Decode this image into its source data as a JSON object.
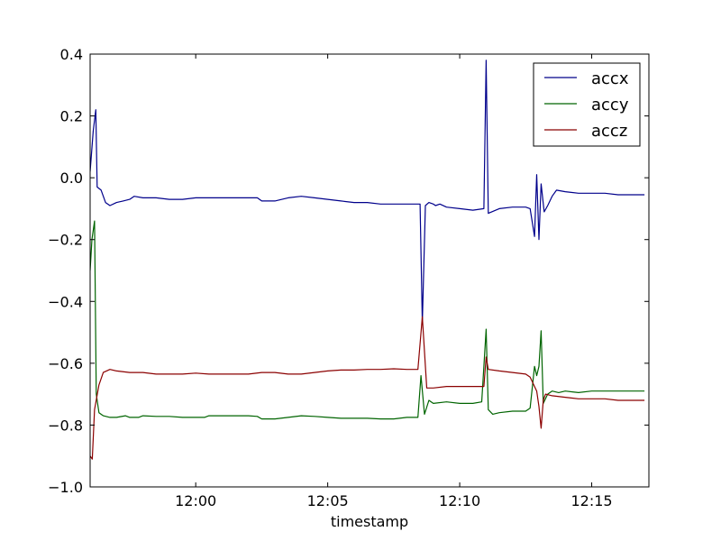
{
  "chart_data": {
    "type": "line",
    "xlabel": "timestamp",
    "ylabel": "",
    "x_unit": "time (hh:mm)",
    "xlim": [
      "11:56:00",
      "12:17:10"
    ],
    "ylim": [
      -1.0,
      0.4
    ],
    "x_ticks": [
      "12:00",
      "12:05",
      "12:10",
      "12:15"
    ],
    "y_ticks": [
      -1.0,
      -0.8,
      -0.6,
      -0.4,
      -0.2,
      0.0,
      0.2,
      0.4
    ],
    "y_tick_labels": [
      "−1.0",
      "−0.8",
      "−0.6",
      "−0.4",
      "−0.2",
      "0.0",
      "0.2",
      "0.4"
    ],
    "grid": false,
    "legend": {
      "placement": "top-right"
    },
    "series": [
      {
        "name": "accx",
        "color": "#00008b",
        "points": [
          [
            "11:56:00",
            0.02
          ],
          [
            "11:56:07",
            0.15
          ],
          [
            "11:56:13",
            0.22
          ],
          [
            "11:56:16",
            -0.03
          ],
          [
            "11:56:25",
            -0.04
          ],
          [
            "11:56:35",
            -0.08
          ],
          [
            "11:56:45",
            -0.09
          ],
          [
            "11:57:00",
            -0.08
          ],
          [
            "11:57:15",
            -0.075
          ],
          [
            "11:57:30",
            -0.07
          ],
          [
            "11:57:40",
            -0.06
          ],
          [
            "11:58:00",
            -0.065
          ],
          [
            "11:58:30",
            -0.065
          ],
          [
            "11:59:00",
            -0.07
          ],
          [
            "11:59:30",
            -0.07
          ],
          [
            "12:00:00",
            -0.065
          ],
          [
            "12:00:30",
            -0.065
          ],
          [
            "12:01:00",
            -0.065
          ],
          [
            "12:01:30",
            -0.065
          ],
          [
            "12:02:00",
            -0.065
          ],
          [
            "12:02:20",
            -0.065
          ],
          [
            "12:02:30",
            -0.075
          ],
          [
            "12:03:00",
            -0.075
          ],
          [
            "12:03:30",
            -0.065
          ],
          [
            "12:04:00",
            -0.06
          ],
          [
            "12:04:30",
            -0.065
          ],
          [
            "12:05:00",
            -0.07
          ],
          [
            "12:05:30",
            -0.075
          ],
          [
            "12:06:00",
            -0.08
          ],
          [
            "12:06:30",
            -0.08
          ],
          [
            "12:07:00",
            -0.085
          ],
          [
            "12:07:30",
            -0.085
          ],
          [
            "12:08:00",
            -0.085
          ],
          [
            "12:08:20",
            -0.085
          ],
          [
            "12:08:30",
            -0.085
          ],
          [
            "12:08:35",
            -0.47
          ],
          [
            "12:08:42",
            -0.09
          ],
          [
            "12:08:50",
            -0.08
          ],
          [
            "12:09:00",
            -0.085
          ],
          [
            "12:09:05",
            -0.09
          ],
          [
            "12:09:15",
            -0.085
          ],
          [
            "12:09:30",
            -0.095
          ],
          [
            "12:10:00",
            -0.1
          ],
          [
            "12:10:30",
            -0.105
          ],
          [
            "12:10:55",
            -0.1
          ],
          [
            "12:11:00",
            0.38
          ],
          [
            "12:11:05",
            -0.115
          ],
          [
            "12:11:30",
            -0.1
          ],
          [
            "12:12:00",
            -0.095
          ],
          [
            "12:12:20",
            -0.095
          ],
          [
            "12:12:30",
            -0.095
          ],
          [
            "12:12:40",
            -0.1
          ],
          [
            "12:12:50",
            -0.19
          ],
          [
            "12:12:55",
            0.01
          ],
          [
            "12:13:00",
            -0.2
          ],
          [
            "12:13:05",
            -0.02
          ],
          [
            "12:13:12",
            -0.11
          ],
          [
            "12:13:20",
            -0.09
          ],
          [
            "12:13:30",
            -0.06
          ],
          [
            "12:13:40",
            -0.04
          ],
          [
            "12:14:00",
            -0.045
          ],
          [
            "12:14:30",
            -0.05
          ],
          [
            "12:15:00",
            -0.05
          ],
          [
            "12:15:30",
            -0.05
          ],
          [
            "12:16:00",
            -0.055
          ],
          [
            "12:16:30",
            -0.055
          ],
          [
            "12:17:00",
            -0.055
          ]
        ]
      },
      {
        "name": "accy",
        "color": "#006400",
        "points": [
          [
            "11:56:00",
            -0.3
          ],
          [
            "11:56:04",
            -0.2
          ],
          [
            "11:56:10",
            -0.14
          ],
          [
            "11:56:14",
            -0.7
          ],
          [
            "11:56:20",
            -0.76
          ],
          [
            "11:56:30",
            -0.77
          ],
          [
            "11:56:45",
            -0.775
          ],
          [
            "11:57:00",
            -0.775
          ],
          [
            "11:57:20",
            -0.77
          ],
          [
            "11:57:30",
            -0.775
          ],
          [
            "11:57:50",
            -0.775
          ],
          [
            "11:58:00",
            -0.77
          ],
          [
            "11:58:30",
            -0.772
          ],
          [
            "11:59:00",
            -0.772
          ],
          [
            "11:59:30",
            -0.775
          ],
          [
            "12:00:00",
            -0.775
          ],
          [
            "12:00:20",
            -0.775
          ],
          [
            "12:00:30",
            -0.77
          ],
          [
            "12:01:00",
            -0.77
          ],
          [
            "12:01:30",
            -0.77
          ],
          [
            "12:02:00",
            -0.77
          ],
          [
            "12:02:20",
            -0.772
          ],
          [
            "12:02:30",
            -0.78
          ],
          [
            "12:03:00",
            -0.78
          ],
          [
            "12:03:30",
            -0.775
          ],
          [
            "12:04:00",
            -0.77
          ],
          [
            "12:04:30",
            -0.772
          ],
          [
            "12:05:00",
            -0.775
          ],
          [
            "12:05:30",
            -0.778
          ],
          [
            "12:06:00",
            -0.778
          ],
          [
            "12:06:30",
            -0.778
          ],
          [
            "12:07:00",
            -0.78
          ],
          [
            "12:07:30",
            -0.78
          ],
          [
            "12:08:00",
            -0.775
          ],
          [
            "12:08:25",
            -0.775
          ],
          [
            "12:08:32",
            -0.64
          ],
          [
            "12:08:40",
            -0.765
          ],
          [
            "12:08:50",
            -0.72
          ],
          [
            "12:09:00",
            -0.73
          ],
          [
            "12:09:30",
            -0.725
          ],
          [
            "12:10:00",
            -0.73
          ],
          [
            "12:10:30",
            -0.73
          ],
          [
            "12:10:50",
            -0.725
          ],
          [
            "12:11:00",
            -0.49
          ],
          [
            "12:11:05",
            -0.75
          ],
          [
            "12:11:15",
            -0.765
          ],
          [
            "12:11:30",
            -0.76
          ],
          [
            "12:12:00",
            -0.755
          ],
          [
            "12:12:30",
            -0.755
          ],
          [
            "12:12:40",
            -0.745
          ],
          [
            "12:12:50",
            -0.61
          ],
          [
            "12:12:55",
            -0.64
          ],
          [
            "12:13:00",
            -0.61
          ],
          [
            "12:13:05",
            -0.495
          ],
          [
            "12:13:10",
            -0.73
          ],
          [
            "12:13:20",
            -0.7
          ],
          [
            "12:13:30",
            -0.69
          ],
          [
            "12:13:45",
            -0.695
          ],
          [
            "12:14:00",
            -0.69
          ],
          [
            "12:14:30",
            -0.695
          ],
          [
            "12:15:00",
            -0.69
          ],
          [
            "12:15:30",
            -0.69
          ],
          [
            "12:16:00",
            -0.69
          ],
          [
            "12:16:30",
            -0.69
          ],
          [
            "12:17:00",
            -0.69
          ]
        ]
      },
      {
        "name": "accz",
        "color": "#8b0000",
        "points": [
          [
            "11:56:00",
            -0.9
          ],
          [
            "11:56:05",
            -0.91
          ],
          [
            "11:56:10",
            -0.75
          ],
          [
            "11:56:20",
            -0.67
          ],
          [
            "11:56:30",
            -0.63
          ],
          [
            "11:56:45",
            -0.62
          ],
          [
            "11:57:00",
            -0.625
          ],
          [
            "11:57:30",
            -0.63
          ],
          [
            "11:58:00",
            -0.63
          ],
          [
            "11:58:30",
            -0.635
          ],
          [
            "11:59:00",
            -0.635
          ],
          [
            "11:59:30",
            -0.635
          ],
          [
            "12:00:00",
            -0.632
          ],
          [
            "12:00:30",
            -0.635
          ],
          [
            "12:01:00",
            -0.635
          ],
          [
            "12:01:30",
            -0.635
          ],
          [
            "12:02:00",
            -0.635
          ],
          [
            "12:02:30",
            -0.63
          ],
          [
            "12:03:00",
            -0.63
          ],
          [
            "12:03:30",
            -0.635
          ],
          [
            "12:04:00",
            -0.635
          ],
          [
            "12:04:30",
            -0.63
          ],
          [
            "12:05:00",
            -0.625
          ],
          [
            "12:05:30",
            -0.622
          ],
          [
            "12:06:00",
            -0.622
          ],
          [
            "12:06:30",
            -0.62
          ],
          [
            "12:07:00",
            -0.62
          ],
          [
            "12:07:30",
            -0.618
          ],
          [
            "12:08:00",
            -0.62
          ],
          [
            "12:08:25",
            -0.62
          ],
          [
            "12:08:35",
            -0.45
          ],
          [
            "12:08:45",
            -0.68
          ],
          [
            "12:09:00",
            -0.68
          ],
          [
            "12:09:30",
            -0.675
          ],
          [
            "12:10:00",
            -0.675
          ],
          [
            "12:10:30",
            -0.675
          ],
          [
            "12:10:55",
            -0.675
          ],
          [
            "12:11:00",
            -0.58
          ],
          [
            "12:11:05",
            -0.62
          ],
          [
            "12:11:30",
            -0.625
          ],
          [
            "12:12:00",
            -0.63
          ],
          [
            "12:12:30",
            -0.635
          ],
          [
            "12:12:40",
            -0.645
          ],
          [
            "12:12:55",
            -0.69
          ],
          [
            "12:13:00",
            -0.74
          ],
          [
            "12:13:05",
            -0.81
          ],
          [
            "12:13:10",
            -0.72
          ],
          [
            "12:13:15",
            -0.7
          ],
          [
            "12:13:30",
            -0.705
          ],
          [
            "12:14:00",
            -0.71
          ],
          [
            "12:14:30",
            -0.715
          ],
          [
            "12:15:00",
            -0.715
          ],
          [
            "12:15:30",
            -0.715
          ],
          [
            "12:16:00",
            -0.72
          ],
          [
            "12:16:30",
            -0.72
          ],
          [
            "12:17:00",
            -0.72
          ]
        ]
      }
    ]
  }
}
